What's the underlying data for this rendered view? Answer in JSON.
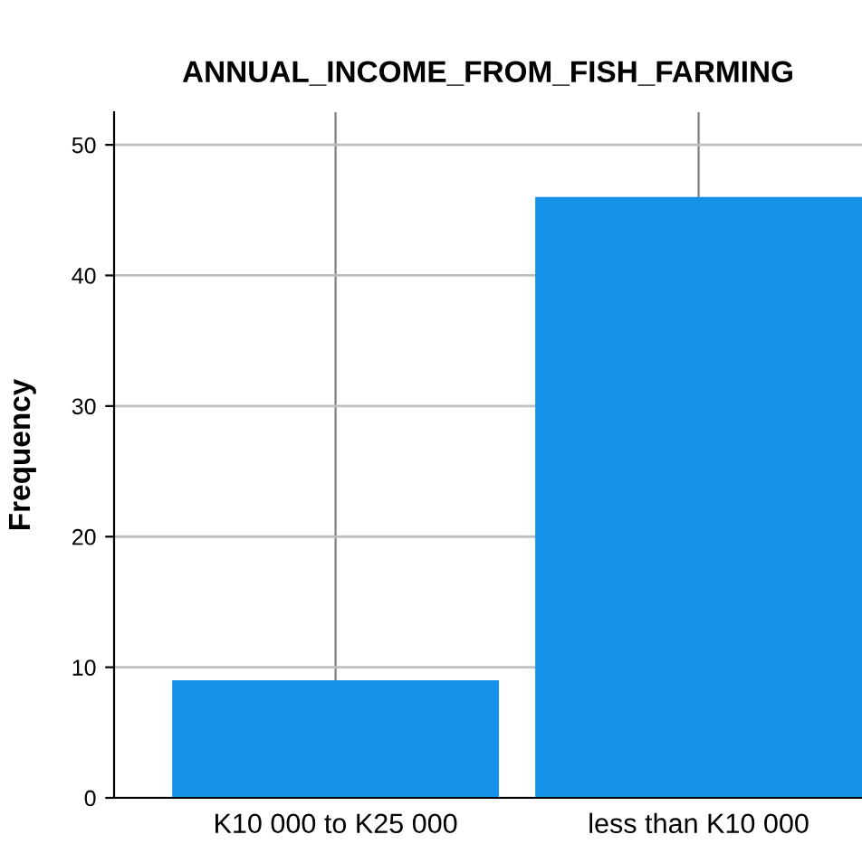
{
  "chart_data": {
    "type": "bar",
    "title": "ANNUAL_INCOME_FROM_FISH_FARMING",
    "ylabel": "Frequency",
    "categories": [
      "K10 000 to K25 000",
      "less than K10 000"
    ],
    "values": [
      9,
      46
    ],
    "color": "#1591ea",
    "ylim": [
      0,
      52.5
    ],
    "yticks": [
      0,
      10,
      20,
      30,
      40,
      50
    ],
    "grid": true
  }
}
